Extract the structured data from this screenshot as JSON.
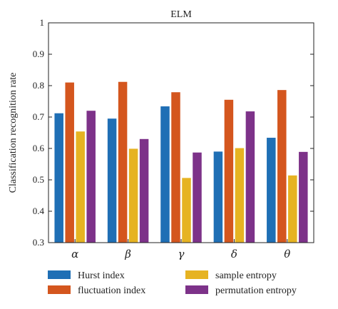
{
  "chart_data": {
    "type": "bar",
    "title": "ELM",
    "ylabel": "Classification recognition rate",
    "xlabel": "",
    "categories": [
      "α",
      "β",
      "γ",
      "δ",
      "θ"
    ],
    "ylim": [
      0.3,
      1.0
    ],
    "yticks": [
      "0.3",
      "0.4",
      "0.5",
      "0.6",
      "0.7",
      "0.8",
      "0.9",
      "1"
    ],
    "legend_position": "bottom",
    "grid": false,
    "series": [
      {
        "name": "Hurst index",
        "color": "#1f6fb5",
        "values": [
          0.712,
          0.695,
          0.734,
          0.59,
          0.634
        ]
      },
      {
        "name": "fluctuation index",
        "color": "#d4561e",
        "values": [
          0.81,
          0.812,
          0.779,
          0.755,
          0.786
        ]
      },
      {
        "name": "sample entropy",
        "color": "#e6b322",
        "values": [
          0.654,
          0.599,
          0.506,
          0.601,
          0.514
        ]
      },
      {
        "name": "permutation entropy",
        "color": "#7d3289",
        "values": [
          0.72,
          0.63,
          0.587,
          0.718,
          0.589
        ]
      }
    ]
  }
}
